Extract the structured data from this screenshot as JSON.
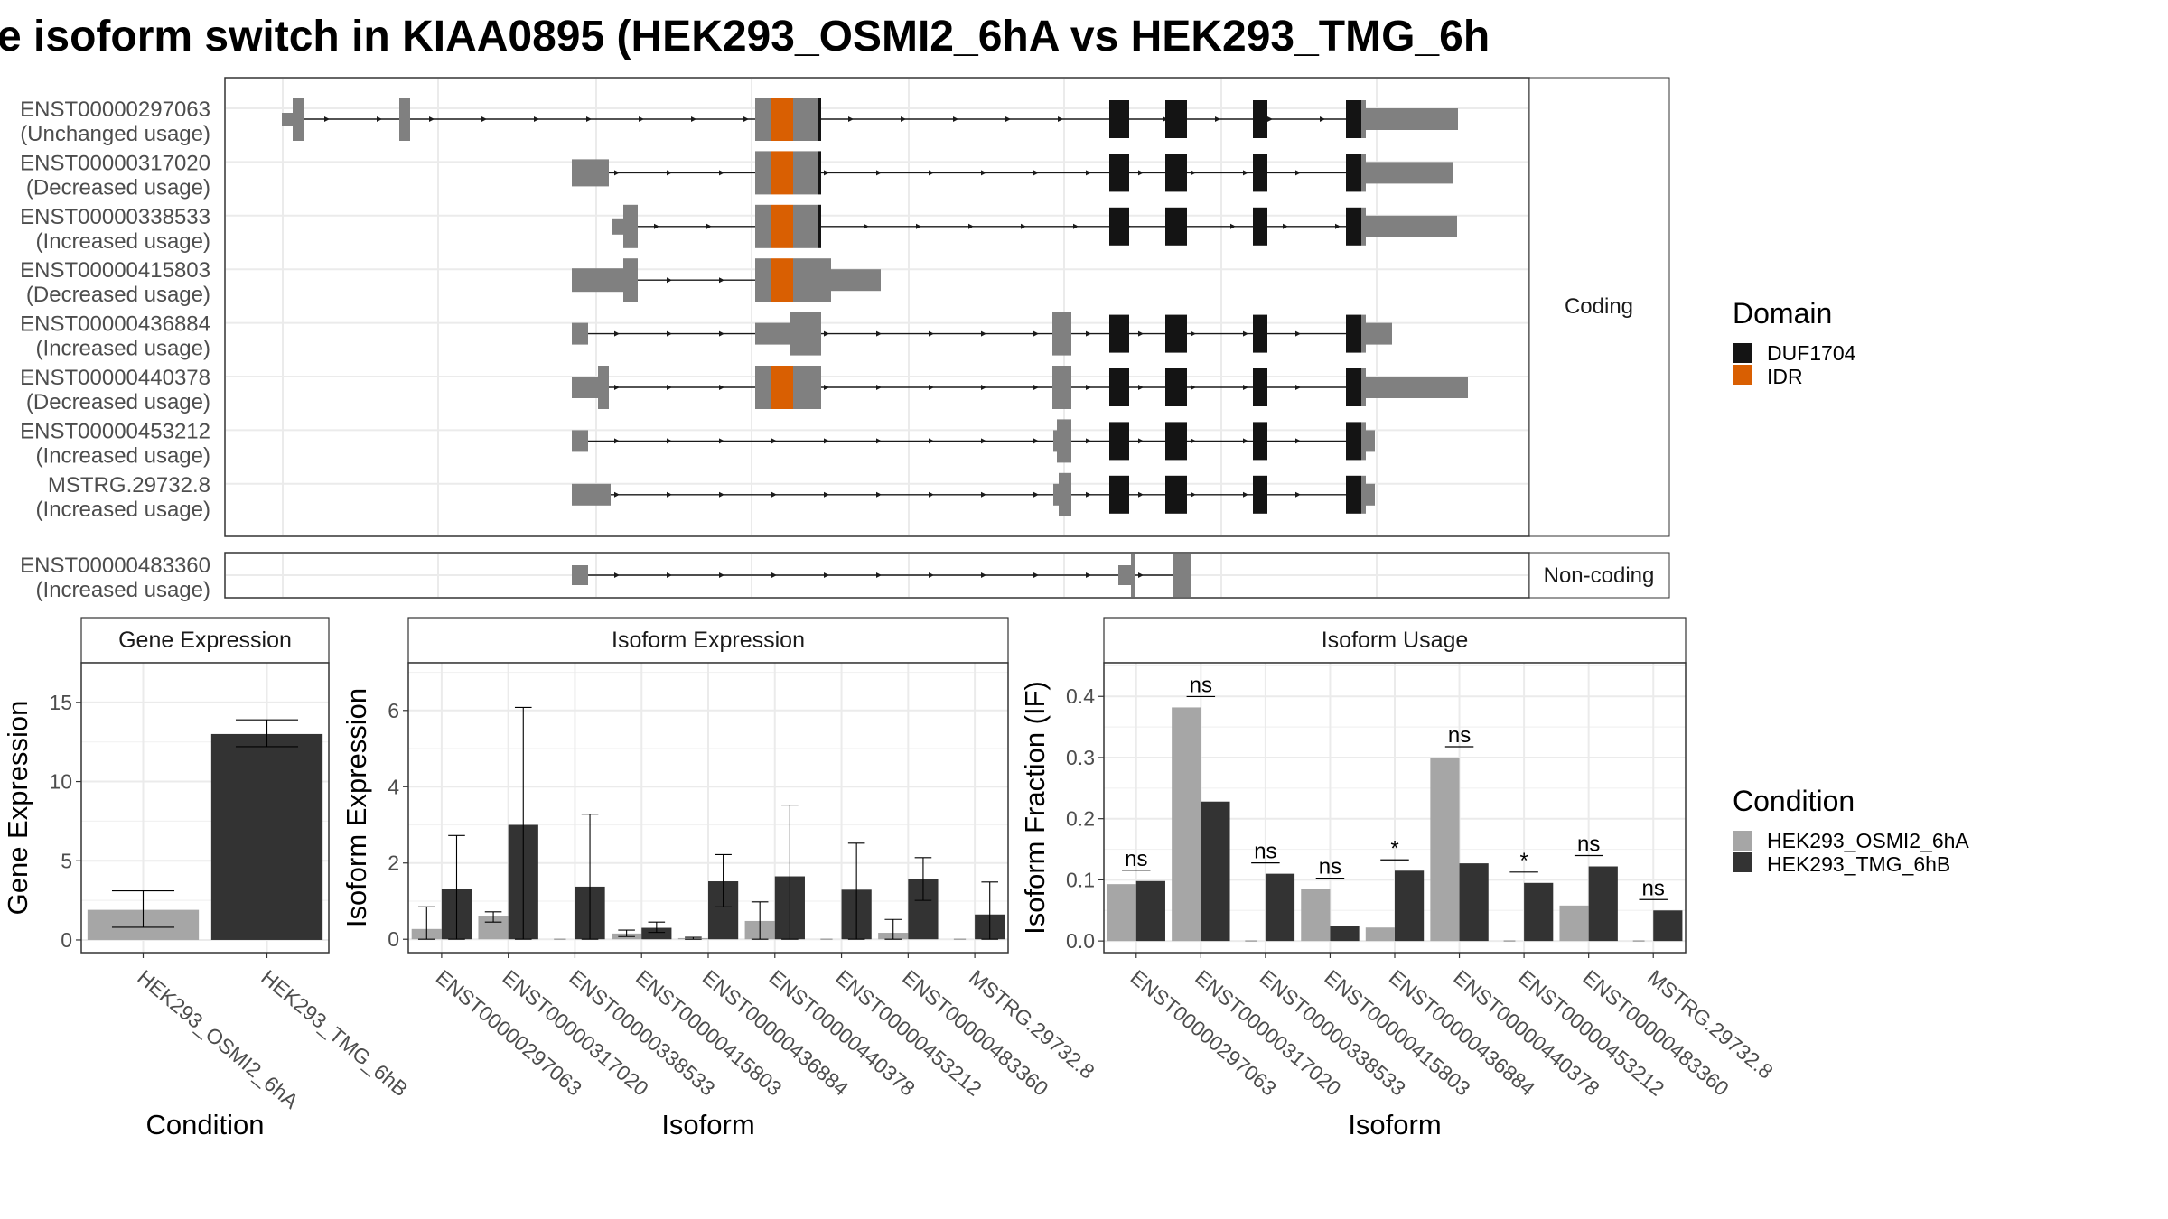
{
  "title": "e isoform switch in KIAA0895 (HEK293_OSMI2_6hA vs HEK293_TMG_6h",
  "colors": {
    "exon": "#808080",
    "duf": "#141414",
    "idr": "#d95f02",
    "cond_a": "#a6a6a6",
    "cond_b": "#333333"
  },
  "structure": {
    "strips": {
      "coding": "Coding",
      "noncoding": "Non-coding"
    },
    "coding_rows": [
      {
        "id": "ENST00000297063",
        "usage": "(Unchanged usage)"
      },
      {
        "id": "ENST00000317020",
        "usage": "(Decreased usage)"
      },
      {
        "id": "ENST00000338533",
        "usage": "(Increased usage)"
      },
      {
        "id": "ENST00000415803",
        "usage": "(Decreased usage)"
      },
      {
        "id": "ENST00000436884",
        "usage": "(Increased usage)"
      },
      {
        "id": "ENST00000440378",
        "usage": "(Decreased usage)"
      },
      {
        "id": "ENST00000453212",
        "usage": "(Increased usage)"
      },
      {
        "id": "MSTRG.29732.8",
        "usage": "(Increased usage)"
      }
    ],
    "noncoding_rows": [
      {
        "id": "ENST00000483360",
        "usage": "(Increased usage)"
      }
    ]
  },
  "legend_domain": {
    "title": "Domain",
    "items": [
      {
        "label": "DUF1704",
        "color": "#141414"
      },
      {
        "label": "IDR",
        "color": "#d95f02"
      }
    ]
  },
  "legend_condition": {
    "title": "Condition",
    "items": [
      {
        "label": "HEK293_OSMI2_6hA",
        "color": "#a6a6a6"
      },
      {
        "label": "HEK293_TMG_6hB",
        "color": "#333333"
      }
    ]
  },
  "chart_data": [
    {
      "type": "bar",
      "title": "Gene Expression",
      "xlabel": "Condition",
      "ylabel": "Gene Expression",
      "ylim": [
        -0.8,
        17.5
      ],
      "yticks": [
        0,
        5,
        10,
        15
      ],
      "categories": [
        "HEK293_OSMI2_6hA",
        "HEK293_TMG_6hB"
      ],
      "values": [
        1.9,
        13.0
      ],
      "errors": [
        [
          0.8,
          3.1
        ],
        [
          12.2,
          13.9
        ]
      ]
    },
    {
      "type": "bar",
      "title": "Isoform Expression",
      "xlabel": "Isoform",
      "ylabel": "Isoform Expression",
      "ylim": [
        -0.35,
        7.25
      ],
      "yticks": [
        0,
        2,
        4,
        6
      ],
      "categories": [
        "ENST00000297063",
        "ENST00000317020",
        "ENST00000338533",
        "ENST00000415803",
        "ENST00000436884",
        "ENST00000440378",
        "ENST00000453212",
        "ENST00000483360",
        "MSTRG.29732.8"
      ],
      "series": [
        {
          "name": "HEK293_OSMI2_6hA",
          "values": [
            0.27,
            0.62,
            0.0,
            0.15,
            0.03,
            0.48,
            0.0,
            0.17,
            0.0
          ],
          "errors": [
            [
              0.0,
              0.85
            ],
            [
              0.45,
              0.72
            ],
            [
              0.0,
              0.0
            ],
            [
              0.07,
              0.24
            ],
            [
              0.0,
              0.05
            ],
            [
              0.0,
              0.98
            ],
            [
              0.0,
              0.0
            ],
            [
              0.0,
              0.52
            ],
            [
              0.0,
              0.0
            ]
          ]
        },
        {
          "name": "HEK293_TMG_6hB",
          "values": [
            1.32,
            3.0,
            1.38,
            0.3,
            1.52,
            1.65,
            1.3,
            1.58,
            0.65
          ],
          "errors": [
            [
              0.0,
              2.72
            ],
            [
              0.0,
              6.08
            ],
            [
              0.0,
              3.28
            ],
            [
              0.18,
              0.45
            ],
            [
              0.85,
              2.22
            ],
            [
              0.0,
              3.52
            ],
            [
              0.0,
              2.52
            ],
            [
              1.02,
              2.14
            ],
            [
              0.0,
              1.5
            ]
          ]
        }
      ]
    },
    {
      "type": "bar",
      "title": "Isoform Usage",
      "xlabel": "Isoform",
      "ylabel": "Isoform Fraction (IF)",
      "ylim": [
        -0.019,
        0.455
      ],
      "yticks": [
        0.0,
        0.1,
        0.2,
        0.3,
        0.4
      ],
      "ytick_labels": [
        "0.0",
        "0.1",
        "0.2",
        "0.3",
        "0.4"
      ],
      "categories": [
        "ENST00000297063",
        "ENST00000317020",
        "ENST00000338533",
        "ENST00000415803",
        "ENST00000436884",
        "ENST00000440378",
        "ENST00000453212",
        "ENST00000483360",
        "MSTRG.29732.8"
      ],
      "series": [
        {
          "name": "HEK293_OSMI2_6hA",
          "values": [
            0.093,
            0.382,
            0.0,
            0.085,
            0.022,
            0.3,
            0.0,
            0.058,
            0.0
          ]
        },
        {
          "name": "HEK293_TMG_6hB",
          "values": [
            0.098,
            0.228,
            0.11,
            0.025,
            0.115,
            0.127,
            0.095,
            0.122,
            0.05
          ]
        }
      ],
      "significance": [
        "ns",
        "ns",
        "ns",
        "ns",
        "*",
        "ns",
        "*",
        "ns",
        "ns"
      ]
    }
  ]
}
